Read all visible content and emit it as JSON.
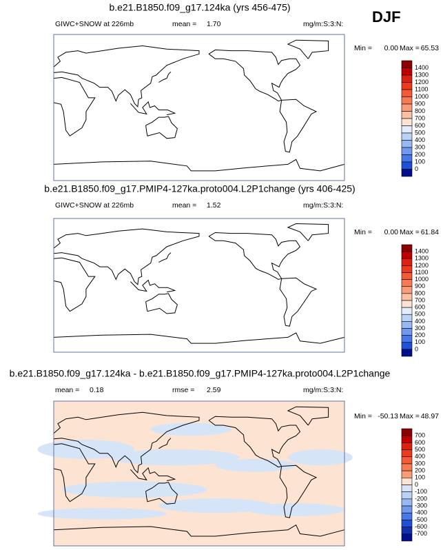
{
  "season": "DJF",
  "panels": [
    {
      "title": "b.e21.B1850.f09_g17.124ka (yrs 456-475)",
      "variable": "GIWC+SNOW at 226mb",
      "stats": [
        {
          "label": "mean =",
          "value": "1.70"
        }
      ],
      "units": "mg/m:S:3:N:",
      "min_label": "Min =",
      "min": "0.00",
      "max_label": "Max =",
      "max": "65.53",
      "colorbar": {
        "labels": [
          "1400",
          "1300",
          "1200",
          "1100",
          "1000",
          "900",
          "800",
          "700",
          "600",
          "500",
          "400",
          "300",
          "200",
          "100",
          "0"
        ],
        "colors": [
          "#8b0000",
          "#c00000",
          "#dd2010",
          "#ee3a1c",
          "#f45a34",
          "#f77a52",
          "#fa9c78",
          "#fcc0a4",
          "#fde3d2",
          "#e2ecfa",
          "#bcd2f5",
          "#98b8f2",
          "#6f98ee",
          "#4878e8",
          "#2050d8",
          "#00108c"
        ]
      }
    },
    {
      "title": "b.e21.B1850.f09_g17.PMIP4-127ka.proto004.L2P1change (yrs 406-425)",
      "variable": "GIWC+SNOW at 226mb",
      "stats": [
        {
          "label": "mean =",
          "value": "1.52"
        }
      ],
      "units": "mg/m:S:3:N:",
      "min_label": "Min =",
      "min": "0.00",
      "max_label": "Max =",
      "max": "61.84",
      "colorbar": {
        "labels": [
          "1400",
          "1300",
          "1200",
          "1100",
          "1000",
          "900",
          "800",
          "700",
          "600",
          "500",
          "400",
          "300",
          "200",
          "100",
          "0"
        ],
        "colors": [
          "#8b0000",
          "#c00000",
          "#dd2010",
          "#ee3a1c",
          "#f45a34",
          "#f77a52",
          "#fa9c78",
          "#fcc0a4",
          "#fde3d2",
          "#e2ecfa",
          "#bcd2f5",
          "#98b8f2",
          "#6f98ee",
          "#4878e8",
          "#2050d8",
          "#00108c"
        ]
      }
    },
    {
      "title": "b.e21.B1850.f09_g17.124ka - b.e21.B1850.f09_g17.PMIP4-127ka.proto004.L2P1change",
      "variable": null,
      "stats": [
        {
          "label": "mean =",
          "value": "0.18"
        },
        {
          "label": "rmse =",
          "value": "2.59"
        }
      ],
      "units": "mg/m:S:3:N:",
      "min_label": "Min =",
      "min": "-50.13",
      "max_label": "Max =",
      "max": "48.97",
      "colorbar": {
        "labels": [
          "700",
          "600",
          "500",
          "400",
          "300",
          "200",
          "100",
          "0",
          "-100",
          "-200",
          "-300",
          "-400",
          "-500",
          "-600",
          "-700"
        ],
        "colors": [
          "#8b0000",
          "#c00000",
          "#dd2010",
          "#ee3a1c",
          "#f45a34",
          "#f77a52",
          "#fa9c78",
          "#fde3d2",
          "#d6e4f8",
          "#bcd2f5",
          "#98b8f2",
          "#6f98ee",
          "#4878e8",
          "#2050d8",
          "#1030b0",
          "#00108c"
        ]
      }
    }
  ]
}
